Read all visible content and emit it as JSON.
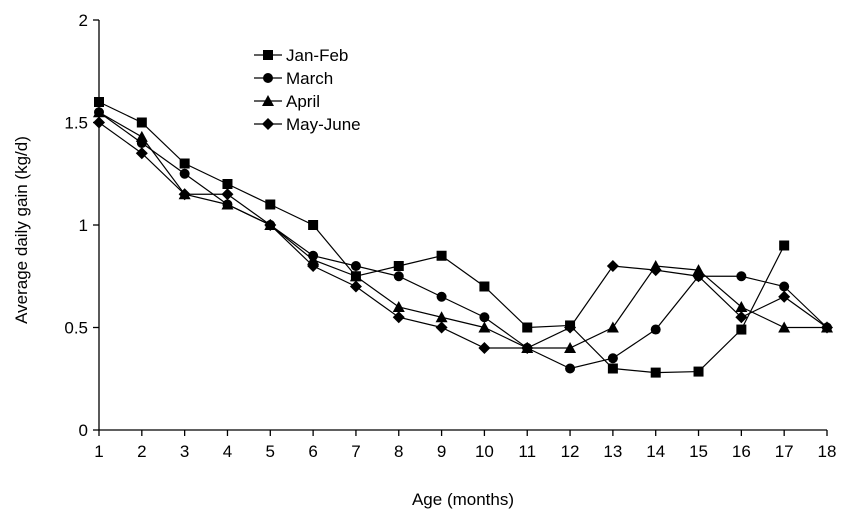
{
  "chart_data": {
    "type": "line",
    "xlabel": "Age (months)",
    "ylabel": "Average daily gain (kg/d)",
    "xlim": [
      1,
      18
    ],
    "ylim": [
      0,
      2
    ],
    "x_ticks": [
      "1",
      "2",
      "3",
      "4",
      "5",
      "6",
      "7",
      "8",
      "9",
      "10",
      "11",
      "12",
      "13",
      "14",
      "15",
      "16",
      "17",
      "18"
    ],
    "y_ticks": [
      {
        "value": 0,
        "label": "0"
      },
      {
        "value": 0.5,
        "label": "0.5"
      },
      {
        "value": 1,
        "label": "1"
      },
      {
        "value": 1.5,
        "label": "1.5"
      },
      {
        "value": 2,
        "label": "2"
      }
    ],
    "grid": false,
    "legend_position": "top-center",
    "series": [
      {
        "name": "Jan-Feb",
        "marker": "square",
        "x": [
          1,
          2,
          3,
          4,
          5,
          6,
          7,
          8,
          9,
          10,
          11,
          12,
          13,
          14,
          15,
          16,
          17
        ],
        "values": [
          1.6,
          1.5,
          1.3,
          1.2,
          1.1,
          1.0,
          0.75,
          0.8,
          0.85,
          0.7,
          0.5,
          0.51,
          0.3,
          0.28,
          0.285,
          0.49,
          0.9
        ]
      },
      {
        "name": "March",
        "marker": "circle",
        "x": [
          1,
          2,
          3,
          4,
          5,
          6,
          7,
          8,
          9,
          10,
          11,
          12,
          13,
          14,
          15,
          16,
          17,
          18
        ],
        "values": [
          1.55,
          1.4,
          1.25,
          1.1,
          1.0,
          0.85,
          0.8,
          0.75,
          0.65,
          0.55,
          0.4,
          0.3,
          0.35,
          0.49,
          0.75,
          0.75,
          0.7,
          0.5
        ]
      },
      {
        "name": "April",
        "marker": "triangle",
        "x": [
          1,
          2,
          3,
          4,
          5,
          6,
          7,
          8,
          9,
          10,
          11,
          12,
          13,
          14,
          15,
          16,
          17,
          18
        ],
        "values": [
          1.55,
          1.43,
          1.15,
          1.1,
          1.0,
          0.83,
          0.75,
          0.6,
          0.55,
          0.5,
          0.4,
          0.4,
          0.5,
          0.8,
          0.78,
          0.6,
          0.5,
          0.5
        ]
      },
      {
        "name": "May-June",
        "marker": "diamond",
        "x": [
          1,
          2,
          3,
          4,
          5,
          6,
          7,
          8,
          9,
          10,
          11,
          12,
          13,
          14,
          15,
          16,
          17,
          18
        ],
        "values": [
          1.5,
          1.35,
          1.15,
          1.15,
          1.0,
          0.8,
          0.7,
          0.55,
          0.5,
          0.4,
          0.4,
          0.5,
          0.8,
          0.78,
          0.75,
          0.55,
          0.65,
          0.5
        ]
      }
    ]
  }
}
